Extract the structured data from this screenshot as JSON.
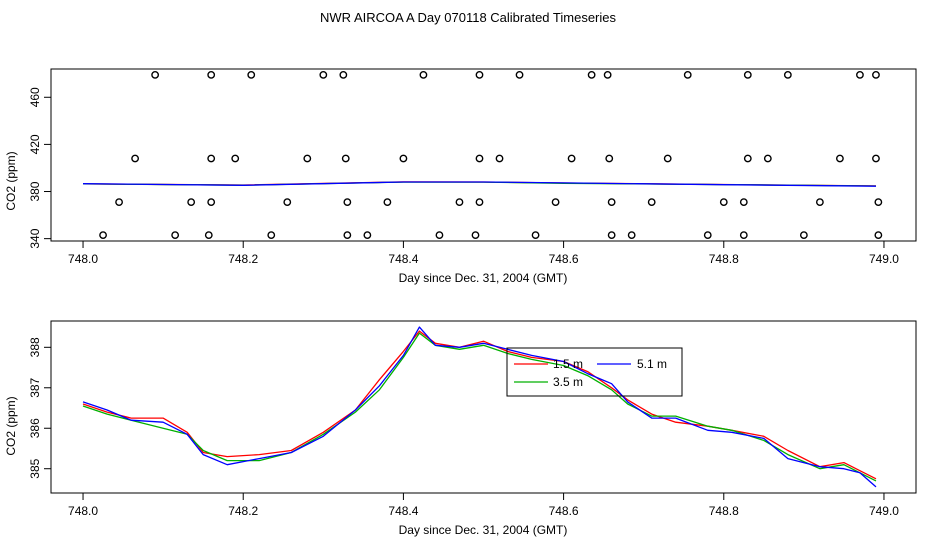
{
  "title": "NWR AIRCOA A  Day 070118  Calibrated Timeseries",
  "chart_data": [
    {
      "type": "scatter",
      "xlabel": "Day since Dec. 31, 2004 (GMT)",
      "ylabel": "CO2 (ppm)",
      "xlim": [
        747.96,
        749.04
      ],
      "ylim": [
        338,
        484
      ],
      "xticks": [
        "748.0",
        "748.2",
        "748.4",
        "748.6",
        "748.8",
        "749.0"
      ],
      "yticks": [
        "340",
        "380",
        "420",
        "460"
      ],
      "points_x": [
        748.09,
        748.16,
        748.21,
        748.3,
        748.325,
        748.425,
        748.495,
        748.545,
        748.635,
        748.655,
        748.755,
        748.83,
        748.88,
        748.97,
        748.99,
        748.065,
        748.16,
        748.19,
        748.28,
        748.328,
        748.4,
        748.495,
        748.52,
        748.61,
        748.657,
        748.73,
        748.83,
        748.855,
        748.945,
        748.99,
        748.045,
        748.135,
        748.16,
        748.255,
        748.33,
        748.38,
        748.47,
        748.495,
        748.59,
        748.66,
        748.71,
        748.8,
        748.825,
        748.92,
        748.993,
        748.025,
        748.115,
        748.157,
        748.235,
        748.33,
        748.355,
        748.445,
        748.49,
        748.565,
        748.66,
        748.685,
        748.78,
        748.825,
        748.9,
        748.993
      ],
      "points_y": [
        479,
        479,
        479,
        479,
        479,
        479,
        479,
        479,
        479,
        479,
        479,
        479,
        479,
        479,
        479,
        408,
        408,
        408,
        408,
        408,
        408,
        408,
        408,
        408,
        408,
        408,
        408,
        408,
        408,
        408,
        371,
        371,
        371,
        371,
        371,
        371,
        371,
        371,
        371,
        371,
        371,
        371,
        371,
        371,
        371,
        343,
        343,
        343,
        343,
        343,
        343,
        343,
        343,
        343,
        343,
        343,
        343,
        343,
        343,
        343
      ],
      "series": [
        {
          "color": "#ff0000",
          "x": [
            748.0,
            748.2,
            748.4,
            748.5,
            748.6,
            748.8,
            748.99
          ],
          "values": [
            386.5,
            385.5,
            388.2,
            388.1,
            387.2,
            386.0,
            384.8
          ]
        },
        {
          "color": "#00b000",
          "x": [
            748.0,
            748.2,
            748.4,
            748.5,
            748.6,
            748.8,
            748.99
          ],
          "values": [
            386.5,
            385.4,
            388.0,
            388.0,
            387.0,
            385.9,
            384.7
          ]
        },
        {
          "color": "#0000ff",
          "x": [
            748.0,
            748.2,
            748.4,
            748.5,
            748.6,
            748.8,
            748.99
          ],
          "values": [
            386.6,
            385.3,
            388.1,
            388.1,
            387.3,
            385.8,
            384.5
          ]
        }
      ]
    },
    {
      "type": "line",
      "xlabel": "Day since Dec. 31, 2004 (GMT)",
      "ylabel": "CO2 (ppm)",
      "xlim": [
        747.96,
        749.04
      ],
      "ylim": [
        384.4,
        388.65
      ],
      "xticks": [
        "748.0",
        "748.2",
        "748.4",
        "748.6",
        "748.8",
        "749.0"
      ],
      "yticks": [
        "385",
        "386",
        "387",
        "388"
      ],
      "legend": {
        "placement": "center"
      },
      "series": [
        {
          "name": "1.5 m",
          "color": "#ff0000",
          "x": [
            748.0,
            748.03,
            748.06,
            748.1,
            748.13,
            748.15,
            748.18,
            748.22,
            748.26,
            748.3,
            748.34,
            748.37,
            748.4,
            748.42,
            748.44,
            748.47,
            748.5,
            748.53,
            748.56,
            748.6,
            748.63,
            748.66,
            748.68,
            748.71,
            748.74,
            748.78,
            748.81,
            748.85,
            748.88,
            748.92,
            748.95,
            748.97,
            748.99
          ],
          "values": [
            386.6,
            386.4,
            386.25,
            386.25,
            385.9,
            385.4,
            385.3,
            385.35,
            385.45,
            385.9,
            386.45,
            387.2,
            387.9,
            388.4,
            388.1,
            388.0,
            388.15,
            387.9,
            387.75,
            387.65,
            387.4,
            387.0,
            386.7,
            386.35,
            386.15,
            386.05,
            385.95,
            385.8,
            385.45,
            385.05,
            385.15,
            384.95,
            384.75
          ]
        },
        {
          "name": "3.5 m",
          "color": "#00b000",
          "x": [
            748.0,
            748.03,
            748.06,
            748.1,
            748.13,
            748.15,
            748.18,
            748.22,
            748.26,
            748.3,
            748.34,
            748.37,
            748.4,
            748.42,
            748.44,
            748.47,
            748.5,
            748.53,
            748.56,
            748.6,
            748.63,
            748.66,
            748.68,
            748.71,
            748.74,
            748.78,
            748.81,
            748.85,
            748.88,
            748.92,
            748.95,
            748.97,
            748.99
          ],
          "values": [
            386.55,
            386.35,
            386.2,
            386.0,
            385.85,
            385.45,
            385.2,
            385.2,
            385.4,
            385.85,
            386.4,
            386.95,
            387.75,
            388.35,
            388.05,
            387.95,
            388.05,
            387.85,
            387.7,
            387.55,
            387.3,
            386.95,
            386.6,
            386.3,
            386.3,
            386.05,
            385.95,
            385.7,
            385.35,
            385.0,
            385.1,
            384.9,
            384.7
          ]
        },
        {
          "name": "5.1 m",
          "color": "#0000ff",
          "x": [
            748.0,
            748.03,
            748.06,
            748.1,
            748.13,
            748.15,
            748.18,
            748.22,
            748.26,
            748.3,
            748.34,
            748.37,
            748.4,
            748.42,
            748.44,
            748.47,
            748.5,
            748.53,
            748.56,
            748.6,
            748.63,
            748.66,
            748.68,
            748.71,
            748.74,
            748.78,
            748.81,
            748.85,
            748.88,
            748.92,
            748.95,
            748.97,
            748.99
          ],
          "values": [
            386.65,
            386.45,
            386.2,
            386.15,
            385.85,
            385.35,
            385.1,
            385.25,
            385.4,
            385.8,
            386.45,
            387.05,
            387.8,
            388.5,
            388.05,
            388.0,
            388.1,
            387.95,
            387.8,
            387.65,
            387.35,
            387.1,
            386.65,
            386.25,
            386.25,
            385.95,
            385.9,
            385.75,
            385.25,
            385.05,
            385.0,
            384.9,
            384.55
          ]
        }
      ]
    }
  ]
}
